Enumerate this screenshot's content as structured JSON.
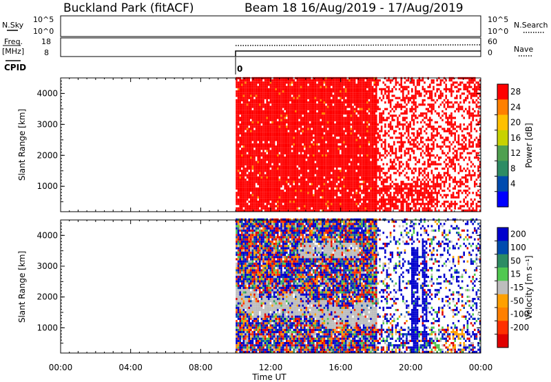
{
  "header": {
    "station": "Buckland Park (fitACF)",
    "beam_date": "Beam 18 16/Aug/2019 - 17/Aug/2019"
  },
  "sky_panel": {
    "left_label": "N.Sky",
    "right_label": "N.Search",
    "ticks_left": [
      "10^5",
      "10^0"
    ],
    "ticks_right": [
      "10^5",
      "10^0"
    ]
  },
  "freq_panel": {
    "left_label_1": "Freq.",
    "left_label_2": "[MHz]",
    "right_label": "Nave",
    "ticks_left": [
      "18",
      "8"
    ],
    "ticks_right": [
      "60",
      "0"
    ]
  },
  "cpid": {
    "label": "CPID",
    "value": "0"
  },
  "colors": {
    "power_red": "#ff0000",
    "velocity_blue": "#0000ee",
    "velocity_gray": "#bdbdbd"
  },
  "chart_data": [
    {
      "type": "heatmap",
      "quantity": "Power",
      "ylabel": "Slant Range [km]",
      "xlabel": "Time UT",
      "x_ticks": [
        "00:00",
        "04:00",
        "08:00",
        "12:00",
        "16:00",
        "20:00",
        "00:00"
      ],
      "x_range_hours": [
        0,
        24
      ],
      "y_ticks": [
        1000,
        2000,
        3000,
        4000
      ],
      "ylim": [
        180,
        4500
      ],
      "data_start_hour": 10.0,
      "dense_end_hour": 18.0,
      "colorbar": {
        "label": "Power [dB]",
        "ticks": [
          "28",
          "24",
          "20",
          "16",
          "12",
          "8",
          "4"
        ],
        "colors": [
          "#ff0000",
          "#ff8000",
          "#ffc000",
          "#c8d200",
          "#50a050",
          "#2d8c64",
          "#004baf",
          "#0000ff"
        ]
      }
    },
    {
      "type": "heatmap",
      "quantity": "Velocity",
      "ylabel": "Slant Range [km]",
      "xlabel": "Time UT",
      "x_ticks": [
        "00:00",
        "04:00",
        "08:00",
        "12:00",
        "16:00",
        "20:00",
        "00:00"
      ],
      "x_range_hours": [
        0,
        24
      ],
      "y_ticks": [
        1000,
        2000,
        3000,
        4000
      ],
      "ylim": [
        180,
        4500
      ],
      "data_start_hour": 10.0,
      "dense_end_hour": 18.0,
      "colorbar": {
        "label": "Velocity [m s⁻¹]",
        "ticks": [
          "200",
          "100",
          "50",
          "15",
          "-15",
          "-50",
          "-100",
          "-200"
        ],
        "colors": [
          "#0000cd",
          "#004baf",
          "#2d8c64",
          "#50c850",
          "#bdbdbd",
          "#ffa000",
          "#ff8000",
          "#ff3000",
          "#e00000"
        ]
      }
    }
  ]
}
